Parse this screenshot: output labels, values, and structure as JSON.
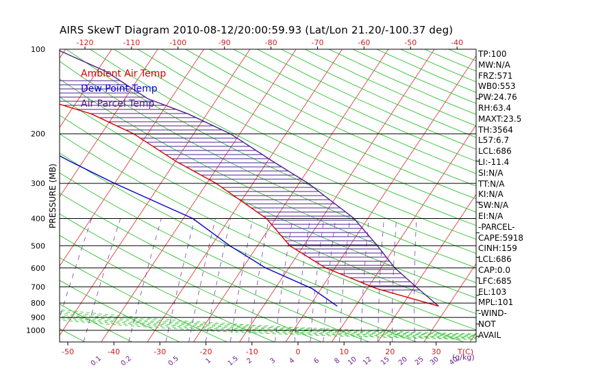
{
  "title": "AIRS SkewT Diagram 2010-08-12/20:00:59.93 (Lat/Lon 21.20/-100.37 deg)",
  "legend": [
    {
      "label": "Ambient Air Temp",
      "color": "#d40000"
    },
    {
      "label": "Dew Point Temp",
      "color": "#0000cc"
    },
    {
      "label": "Air Parcel Temp",
      "color": "#4b1d8f"
    }
  ],
  "stats": [
    "TP:100",
    "MW:N/A",
    "FRZ:571",
    "WB0:553",
    "PW:24.76",
    "RH:63.4",
    "MAXT:23.5",
    "TH:3564",
    "L57:6.7",
    "LCL:686",
    "LI:-11.4",
    "SI:N/A",
    "TT:N/A",
    "KI:N/A",
    "SW:N/A",
    "EI:N/A",
    "-PARCEL-",
    "CAPE:5918",
    "CINH:159",
    "LCL:686",
    "CAP:0.0",
    "LFC:685",
    "EL:103",
    "MPL:101",
    "-WIND-",
    "NOT",
    "AVAIL"
  ],
  "chart_data": {
    "type": "line",
    "title": "AIRS SkewT Diagram 2010-08-12/20:00:59.93 (Lat/Lon 21.20/-100.37 deg)",
    "ylabel": "PRESSURE (MB)",
    "pressure_levels": [
      100,
      200,
      300,
      400,
      500,
      600,
      700,
      800,
      900,
      1000
    ],
    "pressure_range": [
      1100,
      100
    ],
    "bottom_temp_ticks": [
      -50,
      -40,
      -30,
      -20,
      -10,
      0,
      10,
      20,
      30
    ],
    "bottom_temp_unit": "T(C)",
    "top_temp_ticks": [
      -120,
      -110,
      -100,
      -90,
      -80,
      -70,
      -60,
      -50,
      -40
    ],
    "mixing_ratio_ticks": [
      "0.1",
      "0.2",
      "0.5",
      "1",
      "1.5",
      "2",
      "3",
      "4",
      "6",
      "8",
      "10",
      "12",
      "15",
      "20",
      "25",
      "30",
      "40"
    ],
    "mixing_ratio_unit": "(g/kg)",
    "isotherms": true,
    "dry_adiabats": true,
    "moist_adiabats": true,
    "mixing_ratio_lines": true,
    "series": [
      {
        "name": "Ambient Air Temp",
        "color": "#d40000",
        "pressure": [
          820,
          710,
          600,
          500,
          400,
          300,
          250,
          200,
          170,
          150,
          120,
          100
        ],
        "temp": [
          38,
          22,
          8,
          -3,
          -12,
          -28,
          -40,
          -53,
          -65,
          -78,
          -84,
          -85
        ]
      },
      {
        "name": "Dew Point Temp",
        "color": "#0000cc",
        "pressure": [
          820,
          710,
          600,
          500,
          400,
          300,
          250,
          200,
          170,
          150,
          120,
          100
        ],
        "temp": [
          16,
          8,
          -5,
          -16,
          -28,
          -50,
          -63,
          -78,
          -91,
          -101,
          -108,
          -123
        ]
      },
      {
        "name": "Air Parcel Temp",
        "color": "#4b1d8f",
        "pressure": [
          820,
          710,
          600,
          500,
          400,
          300,
          250,
          200,
          170,
          150,
          120,
          100
        ],
        "temp": [
          38,
          31,
          23,
          16,
          7,
          -8,
          -19,
          -32,
          -44,
          -55,
          -68,
          -82
        ]
      }
    ]
  }
}
